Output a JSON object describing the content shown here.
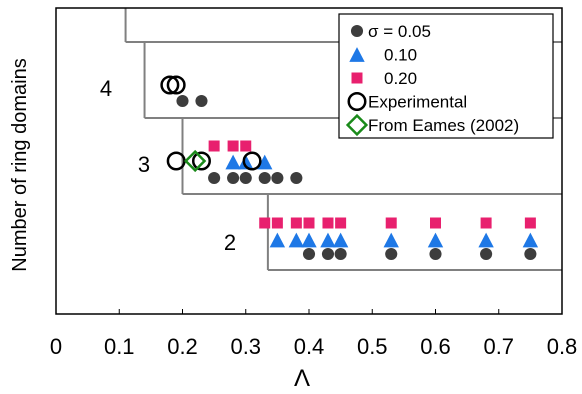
{
  "chart_data": {
    "type": "scatter",
    "title": "",
    "xlabel": "Λ",
    "ylabel": "Number of ring domains",
    "xlim": [
      0,
      0.8
    ],
    "xticks": [
      "0",
      "0.1",
      "0.2",
      "0.3",
      "0.4",
      "0.5",
      "0.6",
      "0.7",
      "0.8"
    ],
    "grid": false,
    "legend_position": "top-right",
    "series": [
      {
        "name": "σ = 0.05",
        "marker": "filled-circle",
        "color": "#3d3d3d",
        "points": [
          {
            "x": 0.2,
            "band": 4,
            "level": 0
          },
          {
            "x": 0.23,
            "band": 4,
            "level": 0
          },
          {
            "x": 0.25,
            "band": 3,
            "level": 0
          },
          {
            "x": 0.28,
            "band": 3,
            "level": 0
          },
          {
            "x": 0.3,
            "band": 3,
            "level": 0
          },
          {
            "x": 0.33,
            "band": 3,
            "level": 0
          },
          {
            "x": 0.35,
            "band": 3,
            "level": 0
          },
          {
            "x": 0.38,
            "band": 3,
            "level": 0
          },
          {
            "x": 0.4,
            "band": 2,
            "level": 0
          },
          {
            "x": 0.43,
            "band": 2,
            "level": 0
          },
          {
            "x": 0.45,
            "band": 2,
            "level": 0
          },
          {
            "x": 0.53,
            "band": 2,
            "level": 0
          },
          {
            "x": 0.6,
            "band": 2,
            "level": 0
          },
          {
            "x": 0.68,
            "band": 2,
            "level": 0
          },
          {
            "x": 0.75,
            "band": 2,
            "level": 0
          }
        ]
      },
      {
        "name": "0.10",
        "marker": "filled-triangle",
        "color": "#1e78e6",
        "points": [
          {
            "x": 0.28,
            "band": 3,
            "level": 1
          },
          {
            "x": 0.3,
            "band": 3,
            "level": 1
          },
          {
            "x": 0.33,
            "band": 3,
            "level": 1
          },
          {
            "x": 0.35,
            "band": 2,
            "level": 1
          },
          {
            "x": 0.38,
            "band": 2,
            "level": 1
          },
          {
            "x": 0.4,
            "band": 2,
            "level": 1
          },
          {
            "x": 0.43,
            "band": 2,
            "level": 1
          },
          {
            "x": 0.45,
            "band": 2,
            "level": 1
          },
          {
            "x": 0.53,
            "band": 2,
            "level": 1
          },
          {
            "x": 0.6,
            "band": 2,
            "level": 1
          },
          {
            "x": 0.68,
            "band": 2,
            "level": 1
          },
          {
            "x": 0.75,
            "band": 2,
            "level": 1
          }
        ]
      },
      {
        "name": "0.20",
        "marker": "filled-square",
        "color": "#e8206e",
        "points": [
          {
            "x": 0.25,
            "band": 3,
            "level": 2
          },
          {
            "x": 0.28,
            "band": 3,
            "level": 2
          },
          {
            "x": 0.3,
            "band": 3,
            "level": 2
          },
          {
            "x": 0.33,
            "band": 2,
            "level": 2
          },
          {
            "x": 0.35,
            "band": 2,
            "level": 2
          },
          {
            "x": 0.38,
            "band": 2,
            "level": 2
          },
          {
            "x": 0.4,
            "band": 2,
            "level": 2
          },
          {
            "x": 0.43,
            "band": 2,
            "level": 2
          },
          {
            "x": 0.45,
            "band": 2,
            "level": 2
          },
          {
            "x": 0.53,
            "band": 2,
            "level": 2
          },
          {
            "x": 0.6,
            "band": 2,
            "level": 2
          },
          {
            "x": 0.68,
            "band": 2,
            "level": 2
          },
          {
            "x": 0.75,
            "band": 2,
            "level": 2
          }
        ]
      },
      {
        "name": "Experimental",
        "marker": "open-circle",
        "color": "#000000",
        "points": [
          {
            "x": 0.18,
            "band": 4,
            "level": 1
          },
          {
            "x": 0.19,
            "band": 4,
            "level": 1
          },
          {
            "x": 0.19,
            "band": 3,
            "level": 1
          },
          {
            "x": 0.23,
            "band": 3,
            "level": 1
          },
          {
            "x": 0.31,
            "band": 3,
            "level": 1
          }
        ]
      },
      {
        "name": "From Eames (2002)",
        "marker": "open-diamond",
        "color": "#1a8a1a",
        "points": [
          {
            "x": 0.22,
            "band": 3,
            "level": 1
          }
        ]
      }
    ],
    "regions": [
      {
        "label": "4",
        "x_from": 0.11,
        "x_to": 0.14
      },
      {
        "label": "3",
        "x_from": 0.14,
        "x_to": 0.2
      },
      {
        "label": "2",
        "x_from": 0.2,
        "x_to": 0.335
      },
      {
        "label": "",
        "x_from": 0.335,
        "x_to": 0.8
      }
    ]
  }
}
